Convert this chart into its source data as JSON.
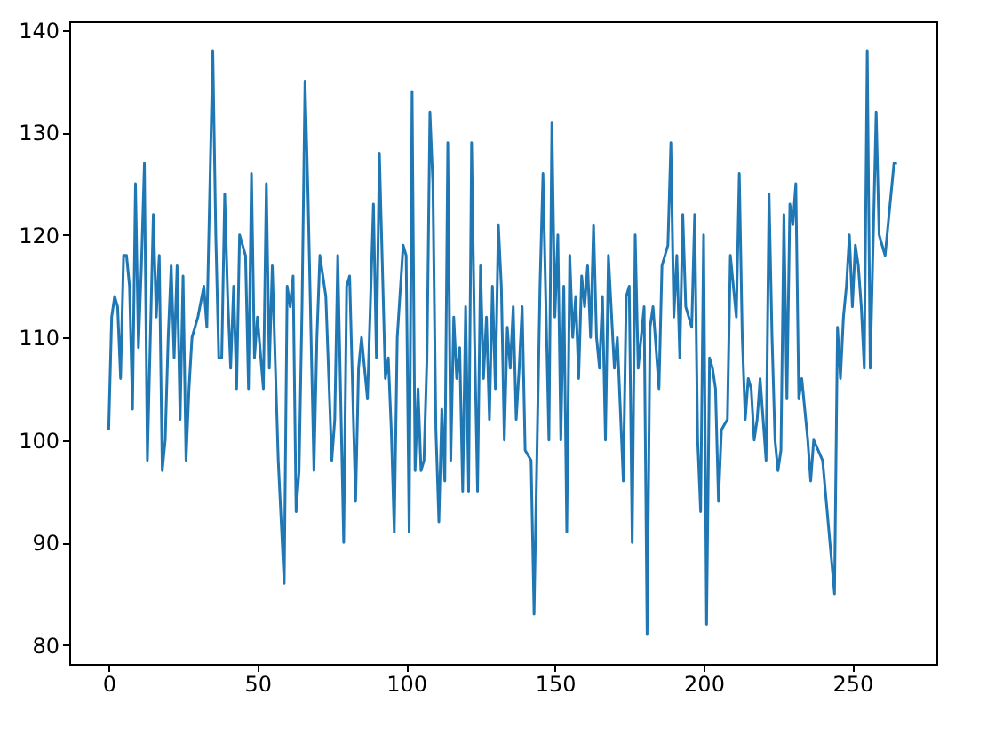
{
  "chart_data": {
    "type": "line",
    "xlim": [
      -13.25,
      278.25
    ],
    "ylim": [
      78.15,
      140.85
    ],
    "xticks": [
      0,
      50,
      100,
      150,
      200,
      250
    ],
    "yticks": [
      80,
      90,
      100,
      110,
      120,
      130,
      140
    ],
    "grid": false,
    "line_style": "solid",
    "marker": "none",
    "series": [
      {
        "color": "#1f77b4",
        "x": [
          0,
          1,
          2,
          3,
          4,
          5,
          6,
          7,
          8,
          9,
          10,
          11,
          12,
          13,
          15,
          16,
          17,
          18,
          19,
          20,
          21,
          22,
          23,
          24,
          25,
          26,
          27,
          28,
          30,
          32,
          33,
          35,
          36,
          37,
          38,
          39,
          40,
          41,
          42,
          43,
          44,
          46,
          47,
          48,
          49,
          50,
          52,
          53,
          54,
          55,
          57,
          59,
          60,
          61,
          62,
          63,
          64,
          65,
          66,
          67,
          69,
          70,
          71,
          73,
          75,
          76,
          77,
          79,
          80,
          81,
          83,
          84,
          85,
          87,
          89,
          90,
          91,
          93,
          94,
          95,
          96,
          97,
          99,
          100,
          101,
          102,
          103,
          104,
          105,
          106,
          107,
          108,
          109,
          110,
          111,
          112,
          113,
          114,
          115,
          116,
          117,
          118,
          119,
          120,
          121,
          122,
          123,
          124,
          125,
          126,
          127,
          128,
          129,
          130,
          131,
          132,
          133,
          134,
          135,
          136,
          137,
          138,
          139,
          140,
          142,
          143,
          144,
          145,
          146,
          148,
          149,
          150,
          151,
          152,
          153,
          154,
          155,
          156,
          157,
          158,
          159,
          160,
          161,
          162,
          163,
          164,
          165,
          166,
          167,
          168,
          170,
          171,
          173,
          174,
          175,
          176,
          177,
          178,
          180,
          181,
          182,
          183,
          185,
          186,
          188,
          189,
          190,
          191,
          192,
          193,
          194,
          196,
          197,
          198,
          199,
          200,
          201,
          202,
          203,
          204,
          205,
          206,
          208,
          209,
          211,
          212,
          213,
          214,
          215,
          216,
          217,
          218,
          219,
          221,
          222,
          223,
          224,
          225,
          226,
          227,
          228,
          229,
          230,
          231,
          232,
          233,
          234,
          235,
          236,
          237,
          240,
          244,
          245,
          246,
          247,
          248,
          249,
          250,
          251,
          252,
          253,
          254,
          255,
          256,
          258,
          259,
          261,
          262,
          264,
          265
        ],
        "values": [
          101,
          112,
          114,
          113,
          106,
          118,
          118,
          115,
          103,
          125,
          109,
          117,
          127,
          98,
          122,
          112,
          118,
          97,
          100,
          110,
          117,
          108,
          117,
          102,
          116,
          98,
          105,
          110,
          112,
          115,
          111,
          138,
          120,
          108,
          108,
          124,
          114,
          107,
          115,
          105,
          120,
          118,
          105,
          126,
          108,
          112,
          105,
          125,
          107,
          117,
          98,
          86,
          115,
          113,
          116,
          93,
          97,
          113,
          135,
          124,
          97,
          110,
          118,
          114,
          98,
          102,
          118,
          90,
          115,
          116,
          94,
          107,
          110,
          104,
          123,
          108,
          128,
          106,
          108,
          101,
          91,
          110,
          119,
          118,
          91,
          134,
          97,
          105,
          97,
          98,
          108,
          132,
          125,
          101,
          92,
          103,
          96,
          129,
          98,
          112,
          106,
          109,
          95,
          113,
          95,
          129,
          110,
          95,
          117,
          106,
          112,
          102,
          115,
          105,
          121,
          115,
          100,
          111,
          107,
          113,
          102,
          107,
          113,
          99,
          98,
          83,
          99,
          115,
          126,
          100,
          131,
          112,
          120,
          100,
          115,
          91,
          118,
          110,
          114,
          106,
          116,
          113,
          117,
          110,
          121,
          110,
          107,
          114,
          100,
          118,
          107,
          110,
          96,
          114,
          115,
          90,
          120,
          107,
          113,
          81,
          111,
          113,
          105,
          117,
          119,
          129,
          112,
          118,
          108,
          122,
          113,
          111,
          122,
          100,
          93,
          120,
          82,
          108,
          107,
          105,
          94,
          101,
          102,
          118,
          112,
          126,
          110,
          102,
          106,
          105,
          100,
          102,
          106,
          98,
          124,
          110,
          100,
          97,
          99,
          122,
          104,
          123,
          121,
          125,
          104,
          106,
          103,
          100,
          96,
          100,
          98,
          85,
          111,
          106,
          112,
          115,
          120,
          113,
          119,
          117,
          113,
          107,
          138,
          107,
          132,
          120,
          118,
          121,
          127,
          127
        ]
      }
    ]
  }
}
